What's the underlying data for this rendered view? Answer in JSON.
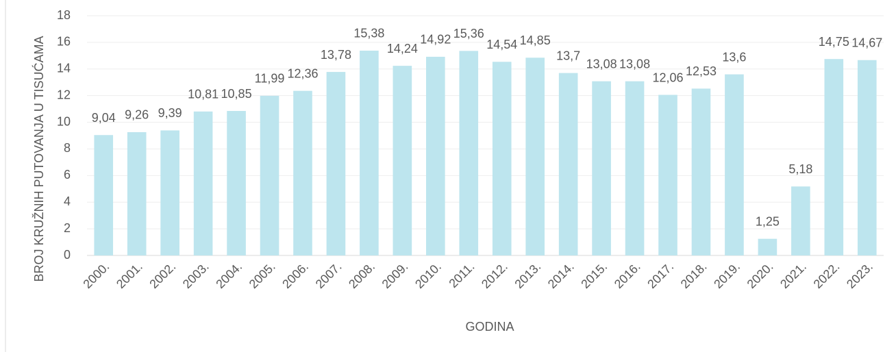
{
  "chart_data": {
    "type": "bar",
    "categories": [
      "2000.",
      "2001.",
      "2002.",
      "2003.",
      "2004.",
      "2005.",
      "2006.",
      "2007.",
      "2008.",
      "2009.",
      "2010.",
      "2011.",
      "2012.",
      "2013.",
      "2014.",
      "2015.",
      "2016.",
      "2017.",
      "2018.",
      "2019.",
      "2020.",
      "2021.",
      "2022.",
      "2023."
    ],
    "values": [
      9.04,
      9.26,
      9.39,
      10.81,
      10.85,
      11.99,
      12.36,
      13.78,
      15.38,
      14.24,
      14.92,
      15.36,
      14.54,
      14.85,
      13.7,
      13.08,
      13.08,
      12.06,
      12.53,
      13.6,
      1.25,
      5.18,
      14.75,
      14.67
    ],
    "value_labels": [
      "9,04",
      "9,26",
      "9,39",
      "10,81",
      "10,85",
      "11,99",
      "12,36",
      "13,78",
      "15,38",
      "14,24",
      "14,92",
      "15,36",
      "14,54",
      "14,85",
      "13,7",
      "13,08",
      "13,08",
      "12,06",
      "12,53",
      "13,6",
      "1,25",
      "5,18",
      "14,75",
      "14,67"
    ],
    "color": "#bde5ee",
    "x_label": "GODINA",
    "y_label": "BROJ KRUŽNIH PUTOVANJA U TISUĆAMA",
    "ylim": [
      0,
      18
    ],
    "yticks": [
      0,
      2,
      4,
      6,
      8,
      10,
      12,
      14,
      16,
      18
    ],
    "grid": true
  }
}
